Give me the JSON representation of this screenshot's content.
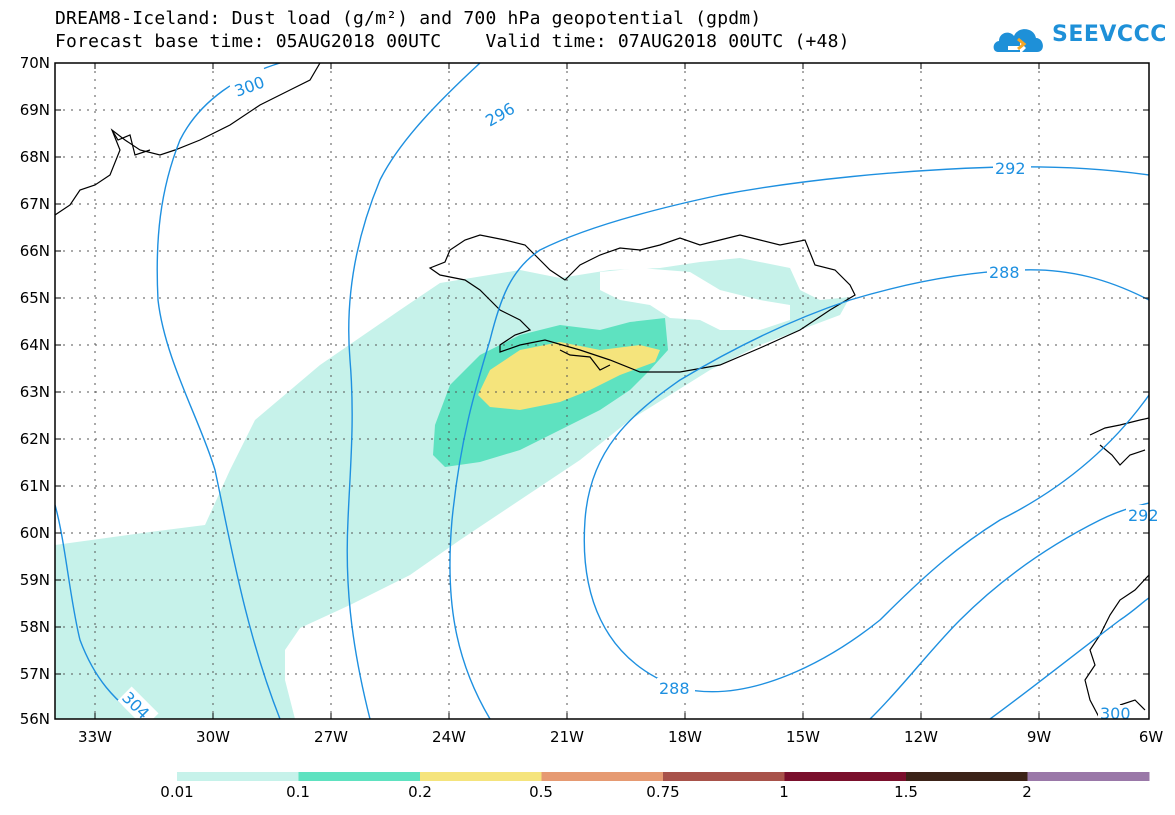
{
  "header": {
    "title_line1": "DREAM8-Iceland: Dust load (g/m²) and 700 hPa geopotential (gpdm)",
    "title_line2": "Forecast base time: 05AUG2018 00UTC    Valid time: 07AUG2018 00UTC (+48)",
    "logo_text": "SEEVCCC",
    "logo_icon": "cloud-icon"
  },
  "map": {
    "lon_range": [
      -34.5,
      -6
    ],
    "lat_range": [
      56,
      70
    ],
    "lon_labels": [
      "33W",
      "30W",
      "27W",
      "24W",
      "21W",
      "18W",
      "15W",
      "12W",
      "9W",
      "6W"
    ],
    "lat_labels": [
      "70N",
      "69N",
      "68N",
      "67N",
      "66N",
      "65N",
      "64N",
      "63N",
      "62N",
      "61N",
      "60N",
      "59N",
      "58N",
      "57N",
      "56N"
    ],
    "contour_labels": [
      "300",
      "296",
      "292",
      "288",
      "288",
      "304",
      "292",
      "300"
    ],
    "contour_color": "#1e90e0",
    "coastline_color": "#000000"
  },
  "legend": {
    "labels": [
      "0.01",
      "0.1",
      "0.2",
      "0.5",
      "0.75",
      "1",
      "1.5",
      "2"
    ],
    "colors": [
      "#c6f2ea",
      "#5ee2c0",
      "#f5e47c",
      "#e69a72",
      "#a8524a",
      "#7a0f2c",
      "#3c2318",
      "#9a78a8"
    ]
  }
}
